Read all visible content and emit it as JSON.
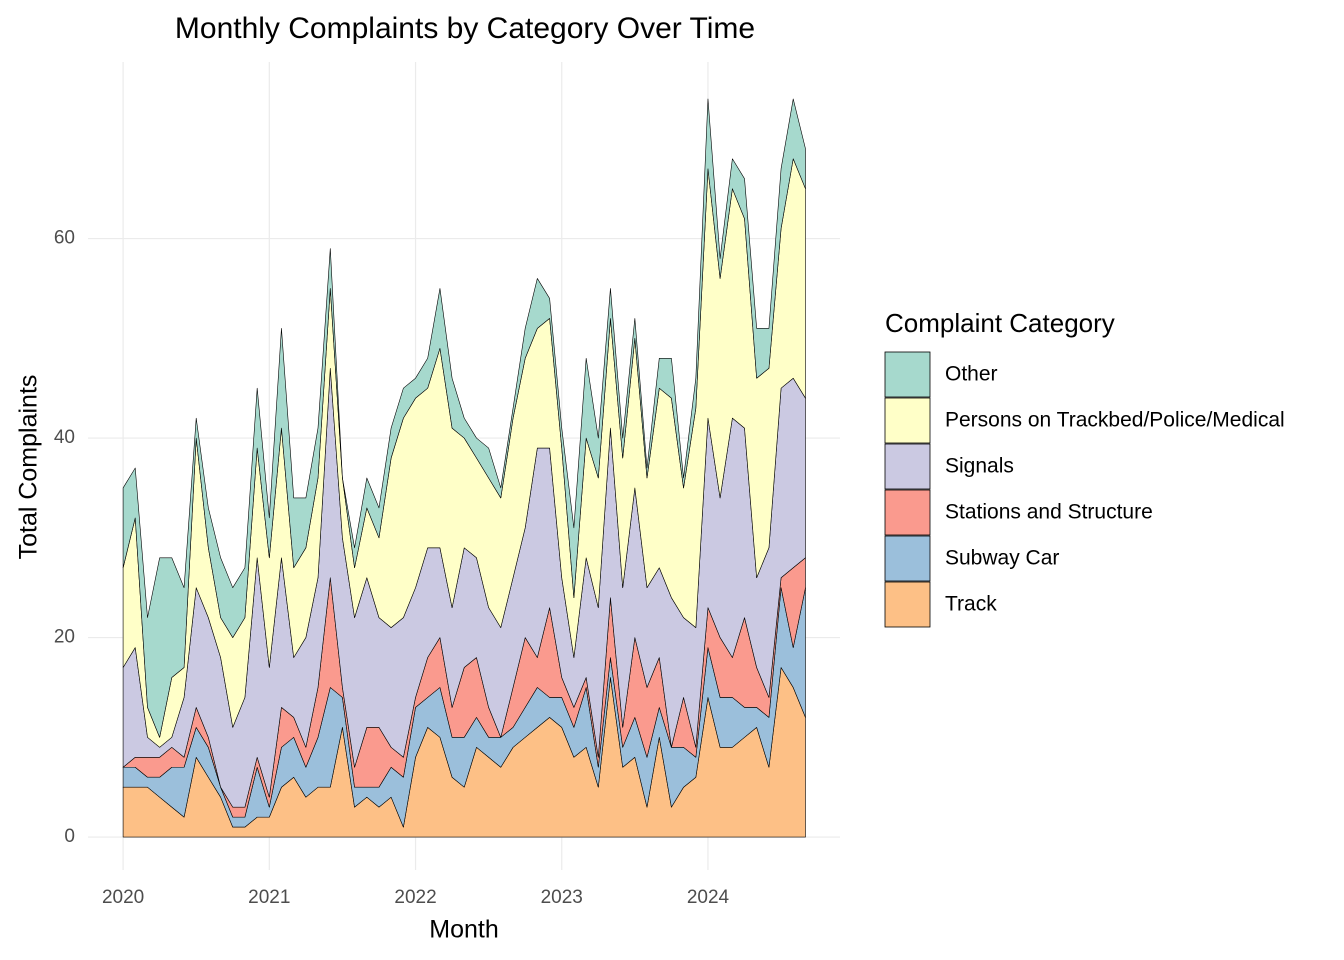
{
  "chart_data": {
    "type": "stacked_area",
    "title": "Monthly Complaints by Category Over Time",
    "xlabel": "Month",
    "ylabel": "Total Complaints",
    "legend_title": "Complaint Category",
    "x": [
      2020,
      2020.083,
      2020.167,
      2020.25,
      2020.333,
      2020.417,
      2020.5,
      2020.583,
      2020.667,
      2020.75,
      2020.833,
      2020.917,
      2021,
      2021.083,
      2021.167,
      2021.25,
      2021.333,
      2021.417,
      2021.5,
      2021.583,
      2021.667,
      2021.75,
      2021.833,
      2021.917,
      2022,
      2022.083,
      2022.167,
      2022.25,
      2022.333,
      2022.417,
      2022.5,
      2022.583,
      2022.667,
      2022.75,
      2022.833,
      2022.917,
      2023,
      2023.083,
      2023.167,
      2023.25,
      2023.333,
      2023.417,
      2023.5,
      2023.583,
      2023.667,
      2023.75,
      2023.833,
      2023.917,
      2024,
      2024.083,
      2024.167,
      2024.25,
      2024.333,
      2024.417,
      2024.5,
      2024.583,
      2024.667
    ],
    "xlim": [
      2019.76,
      2024.903
    ],
    "xticks": [
      2020,
      2021,
      2022,
      2023,
      2024
    ],
    "ylim": [
      -3.3,
      77.7
    ],
    "yticks": [
      0,
      20,
      40,
      60
    ],
    "grid": true,
    "series": [
      {
        "name": "Track",
        "color": "#fdc086",
        "values": [
          5,
          5,
          5,
          4,
          3,
          2,
          8,
          6,
          4,
          1,
          1,
          2,
          2,
          5,
          6,
          4,
          5,
          5,
          11,
          3,
          4,
          3,
          4,
          1,
          8,
          11,
          10,
          6,
          5,
          9,
          8,
          7,
          9,
          10,
          11,
          12,
          11,
          8,
          9,
          5,
          16,
          7,
          8,
          3,
          10,
          3,
          5,
          6,
          14,
          9,
          9,
          10,
          11,
          7,
          17,
          15,
          12
        ]
      },
      {
        "name": "Subway Car",
        "color": "#9bbfdb",
        "values": [
          2,
          2,
          1,
          2,
          4,
          5,
          3,
          3,
          1,
          1,
          1,
          5,
          1,
          4,
          4,
          3,
          5,
          10,
          3,
          2,
          1,
          2,
          3,
          5,
          5,
          3,
          5,
          4,
          5,
          3,
          2,
          3,
          2,
          3,
          4,
          2,
          3,
          3,
          6,
          2,
          2,
          2,
          4,
          5,
          3,
          6,
          4,
          2,
          5,
          5,
          5,
          3,
          2,
          5,
          8,
          4,
          13
        ]
      },
      {
        "name": "Stations and Structure",
        "color": "#fa9a8e",
        "values": [
          0,
          1,
          2,
          2,
          2,
          1,
          2,
          1,
          0,
          1,
          1,
          1,
          1,
          4,
          2,
          2,
          5,
          11,
          1,
          2,
          6,
          6,
          2,
          2,
          1,
          4,
          5,
          3,
          7,
          6,
          3,
          0,
          4,
          7,
          3,
          9,
          2,
          2,
          1,
          1,
          6,
          2,
          8,
          7,
          5,
          0,
          5,
          1,
          4,
          6,
          4,
          9,
          4,
          2,
          1,
          8,
          3
        ]
      },
      {
        "name": "Signals",
        "color": "#cbc9e2",
        "values": [
          10,
          11,
          2,
          1,
          1,
          6,
          12,
          12,
          13,
          8,
          11,
          20,
          13,
          15,
          6,
          11,
          11,
          21,
          15,
          15,
          15,
          11,
          12,
          14,
          11,
          11,
          9,
          10,
          12,
          10,
          10,
          11,
          11,
          11,
          21,
          16,
          10,
          5,
          12,
          15,
          17,
          14,
          15,
          10,
          9,
          15,
          8,
          12,
          19,
          14,
          24,
          19,
          9,
          15,
          19,
          19,
          16
        ]
      },
      {
        "name": "Persons on Trackbed/Police/Medical",
        "color": "#ffffc8",
        "values": [
          10,
          13,
          3,
          1,
          6,
          3,
          15,
          7,
          4,
          9,
          8,
          11,
          11,
          13,
          9,
          9,
          10,
          8,
          6,
          5,
          7,
          8,
          17,
          20,
          19,
          16,
          20,
          18,
          11,
          10,
          13,
          13,
          16,
          17,
          12,
          13,
          13,
          6,
          12,
          13,
          11,
          13,
          15,
          11,
          18,
          20,
          13,
          22,
          25,
          22,
          23,
          21,
          20,
          18,
          16,
          22,
          21
        ]
      },
      {
        "name": "Other",
        "color": "#a6d9cd",
        "values": [
          8,
          5,
          9,
          18,
          12,
          8,
          2,
          4,
          6,
          5,
          5,
          6,
          4,
          10,
          7,
          5,
          5,
          4,
          0,
          2,
          3,
          3,
          3,
          3,
          2,
          3,
          6,
          5,
          2,
          2,
          3,
          1,
          1,
          3,
          5,
          2,
          2,
          7,
          8,
          4,
          3,
          2,
          2,
          1,
          3,
          4,
          1,
          3,
          7,
          2,
          3,
          4,
          5,
          4,
          6,
          6,
          4
        ]
      }
    ]
  }
}
